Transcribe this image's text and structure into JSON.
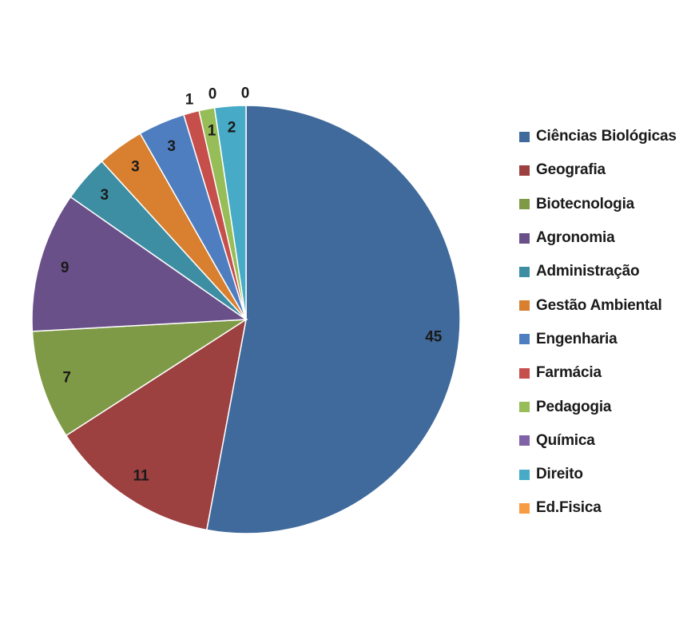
{
  "chart_data": {
    "type": "pie",
    "title": "",
    "legend_position": "right",
    "categories": [
      "Ciências Biológicas",
      "Geografia",
      "Biotecnologia",
      "Agronomia",
      "Administração",
      "Gestão Ambiental",
      "Engenharia",
      "Farmácia",
      "Pedagogia",
      "Química",
      "Direito",
      "Ed.Fisica"
    ],
    "values": [
      45,
      11,
      7,
      9,
      3,
      3,
      3,
      1,
      1,
      0,
      2,
      0
    ],
    "data_labels": [
      "45",
      "11",
      "7",
      "9",
      "3",
      "3",
      "3",
      "1",
      "1",
      "0",
      "2",
      "0"
    ],
    "colors": [
      "#406A9B",
      "#9C4040",
      "#7F9A46",
      "#6A5088",
      "#3D8EA3",
      "#D8802F",
      "#4F7EC0",
      "#C64E4B",
      "#97BD58",
      "#7F62A8",
      "#47AAC6",
      "#F79C42"
    ]
  }
}
